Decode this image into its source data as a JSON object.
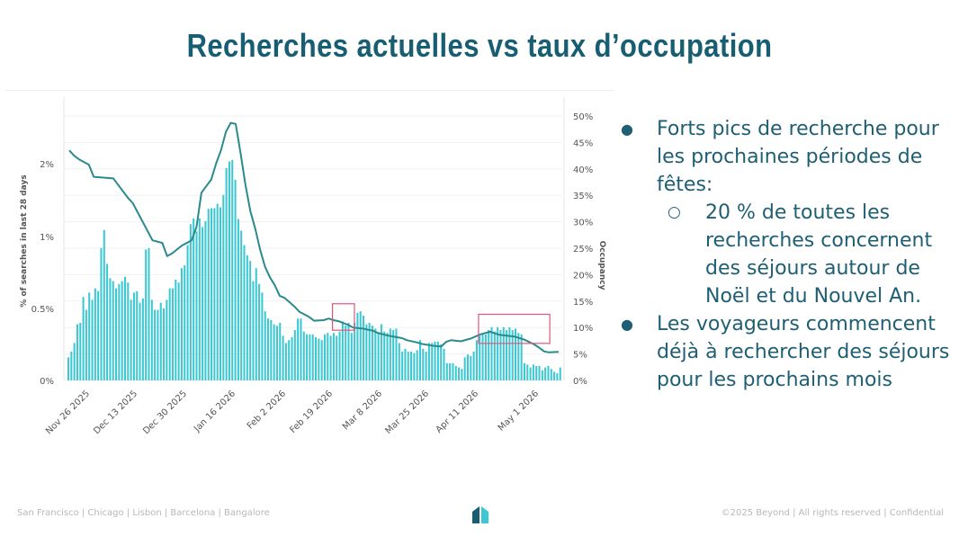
{
  "slide": {
    "title": "Recherches actuelles vs taux d’occupation",
    "footer_left": "San Francisco | Chicago | Lisbon | Barcelona | Bangalore",
    "footer_right": "©2025 Beyond | All rights reserved | Confidential",
    "logo_icon": "house-logo-icon",
    "colors": {
      "title": "#175e73",
      "bars": "#3cc8d3",
      "line": "#2a8a8c",
      "highlight": "#e0567a"
    }
  },
  "bullets": [
    {
      "text": "Forts pics de recherche pour les prochaines périodes de fêtes:",
      "sub": [
        "20 % de toutes les recherches concernent des séjours autour de Noël et du Nouvel An."
      ]
    },
    {
      "text": "Les voyageurs commencent déjà à rechercher des séjours pour les prochains mois",
      "sub": []
    }
  ],
  "chart_data": {
    "type": "bar",
    "ylabel": "% of searches in last 28 days",
    "y2label": "Occupancy",
    "yticks": [
      "0%",
      "0.5%",
      "1%",
      "2%"
    ],
    "y2ticks": [
      "0%",
      "5%",
      "10%",
      "15%",
      "20%",
      "25%",
      "30%",
      "35%",
      "40%",
      "45%",
      "50%"
    ],
    "xticks": [
      "Nov 26 2025",
      "Dec 13 2025",
      "Dec 30 2025",
      "Jan 16 2026",
      "Feb 2 2026",
      "Feb 19 2026",
      "Mar 8 2026",
      "Mar 25 2026",
      "Apr 11 2026",
      "May 1 2026"
    ],
    "bar_series": {
      "name": "% of searches in last 28 days",
      "values": [
        0.16,
        0.2,
        0.26,
        0.39,
        0.4,
        0.58,
        0.49,
        0.61,
        0.56,
        0.64,
        0.62,
        0.92,
        1.09,
        0.81,
        0.71,
        0.69,
        0.64,
        0.67,
        0.69,
        0.72,
        0.68,
        0.56,
        0.61,
        0.62,
        0.54,
        0.57,
        0.91,
        0.92,
        0.56,
        0.49,
        0.49,
        0.54,
        0.5,
        0.56,
        0.64,
        0.64,
        0.7,
        0.68,
        0.78,
        0.8,
        0.94,
        1.17,
        1.25,
        1.07,
        1.25,
        1.13,
        1.21,
        1.38,
        1.39,
        1.39,
        1.45,
        1.4,
        1.57,
        1.94,
        2.03,
        2.05,
        1.78,
        1.24,
        1.08,
        0.94,
        0.87,
        0.83,
        0.69,
        0.78,
        0.67,
        0.61,
        0.48,
        0.43,
        0.42,
        0.39,
        0.38,
        0.4,
        0.31,
        0.26,
        0.28,
        0.3,
        0.35,
        0.43,
        0.43,
        0.34,
        0.32,
        0.32,
        0.32,
        0.3,
        0.29,
        0.28,
        0.32,
        0.33,
        0.31,
        0.33,
        0.31,
        0.34,
        0.41,
        0.38,
        0.4,
        0.33,
        0.4,
        0.47,
        0.48,
        0.45,
        0.39,
        0.4,
        0.38,
        0.36,
        0.33,
        0.39,
        0.34,
        0.33,
        0.36,
        0.35,
        0.36,
        0.26,
        0.2,
        0.22,
        0.2,
        0.2,
        0.19,
        0.21,
        0.28,
        0.22,
        0.2,
        0.26,
        0.26,
        0.27,
        0.27,
        0.25,
        0.22,
        0.12,
        0.12,
        0.12,
        0.1,
        0.09,
        0.08,
        0.16,
        0.18,
        0.17,
        0.2,
        0.28,
        0.31,
        0.32,
        0.32,
        0.35,
        0.37,
        0.34,
        0.37,
        0.35,
        0.37,
        0.35,
        0.37,
        0.35,
        0.36,
        0.33,
        0.32,
        0.12,
        0.11,
        0.09,
        0.11,
        0.1,
        0.1,
        0.07,
        0.09,
        0.1,
        0.08,
        0.06,
        0.05,
        0.09
      ]
    },
    "line_series": {
      "name": "Occupancy",
      "x_frac": [
        0,
        0.01,
        0.02,
        0.04,
        0.05,
        0.09,
        0.12,
        0.13,
        0.15,
        0.17,
        0.19,
        0.2,
        0.21,
        0.23,
        0.25,
        0.26,
        0.27,
        0.29,
        0.3,
        0.31,
        0.32,
        0.33,
        0.34,
        0.35,
        0.36,
        0.37,
        0.38,
        0.39,
        0.4,
        0.41,
        0.42,
        0.43,
        0.44,
        0.46,
        0.47,
        0.49,
        0.5,
        0.52,
        0.53,
        0.54,
        0.55,
        0.57,
        0.58,
        0.6,
        0.62,
        0.63,
        0.65,
        0.68,
        0.69,
        0.71,
        0.72,
        0.74,
        0.76,
        0.77,
        0.78,
        0.8,
        0.82,
        0.84,
        0.86,
        0.88,
        0.89,
        0.91,
        0.93,
        0.95,
        0.96,
        0.97,
        0.98,
        1
      ],
      "values": [
        43.5,
        42.5,
        41.8,
        40.8,
        38.5,
        38.2,
        34.5,
        33.5,
        30,
        26.5,
        26,
        23.5,
        24,
        25.5,
        26.5,
        29,
        35.5,
        38,
        41,
        43.5,
        47,
        48.7,
        48.5,
        43,
        37,
        32,
        28.7,
        24.7,
        21.5,
        19.5,
        18,
        16,
        15.6,
        14,
        13,
        12,
        11.3,
        11.4,
        11.7,
        11.4,
        11.2,
        10.5,
        10,
        9.8,
        9.4,
        9,
        8.5,
        8,
        7.6,
        7.2,
        6.9,
        6.6,
        6.4,
        7.3,
        7.6,
        7.4,
        7.9,
        8.7,
        9.2,
        8.6,
        8.5,
        8.3,
        7.7,
        6.8,
        6.2,
        5.5,
        5.3,
        5.4
      ]
    },
    "highlight_boxes": [
      "Feb 19 2026",
      "Apr 11 2026 - May 1 2026"
    ]
  }
}
